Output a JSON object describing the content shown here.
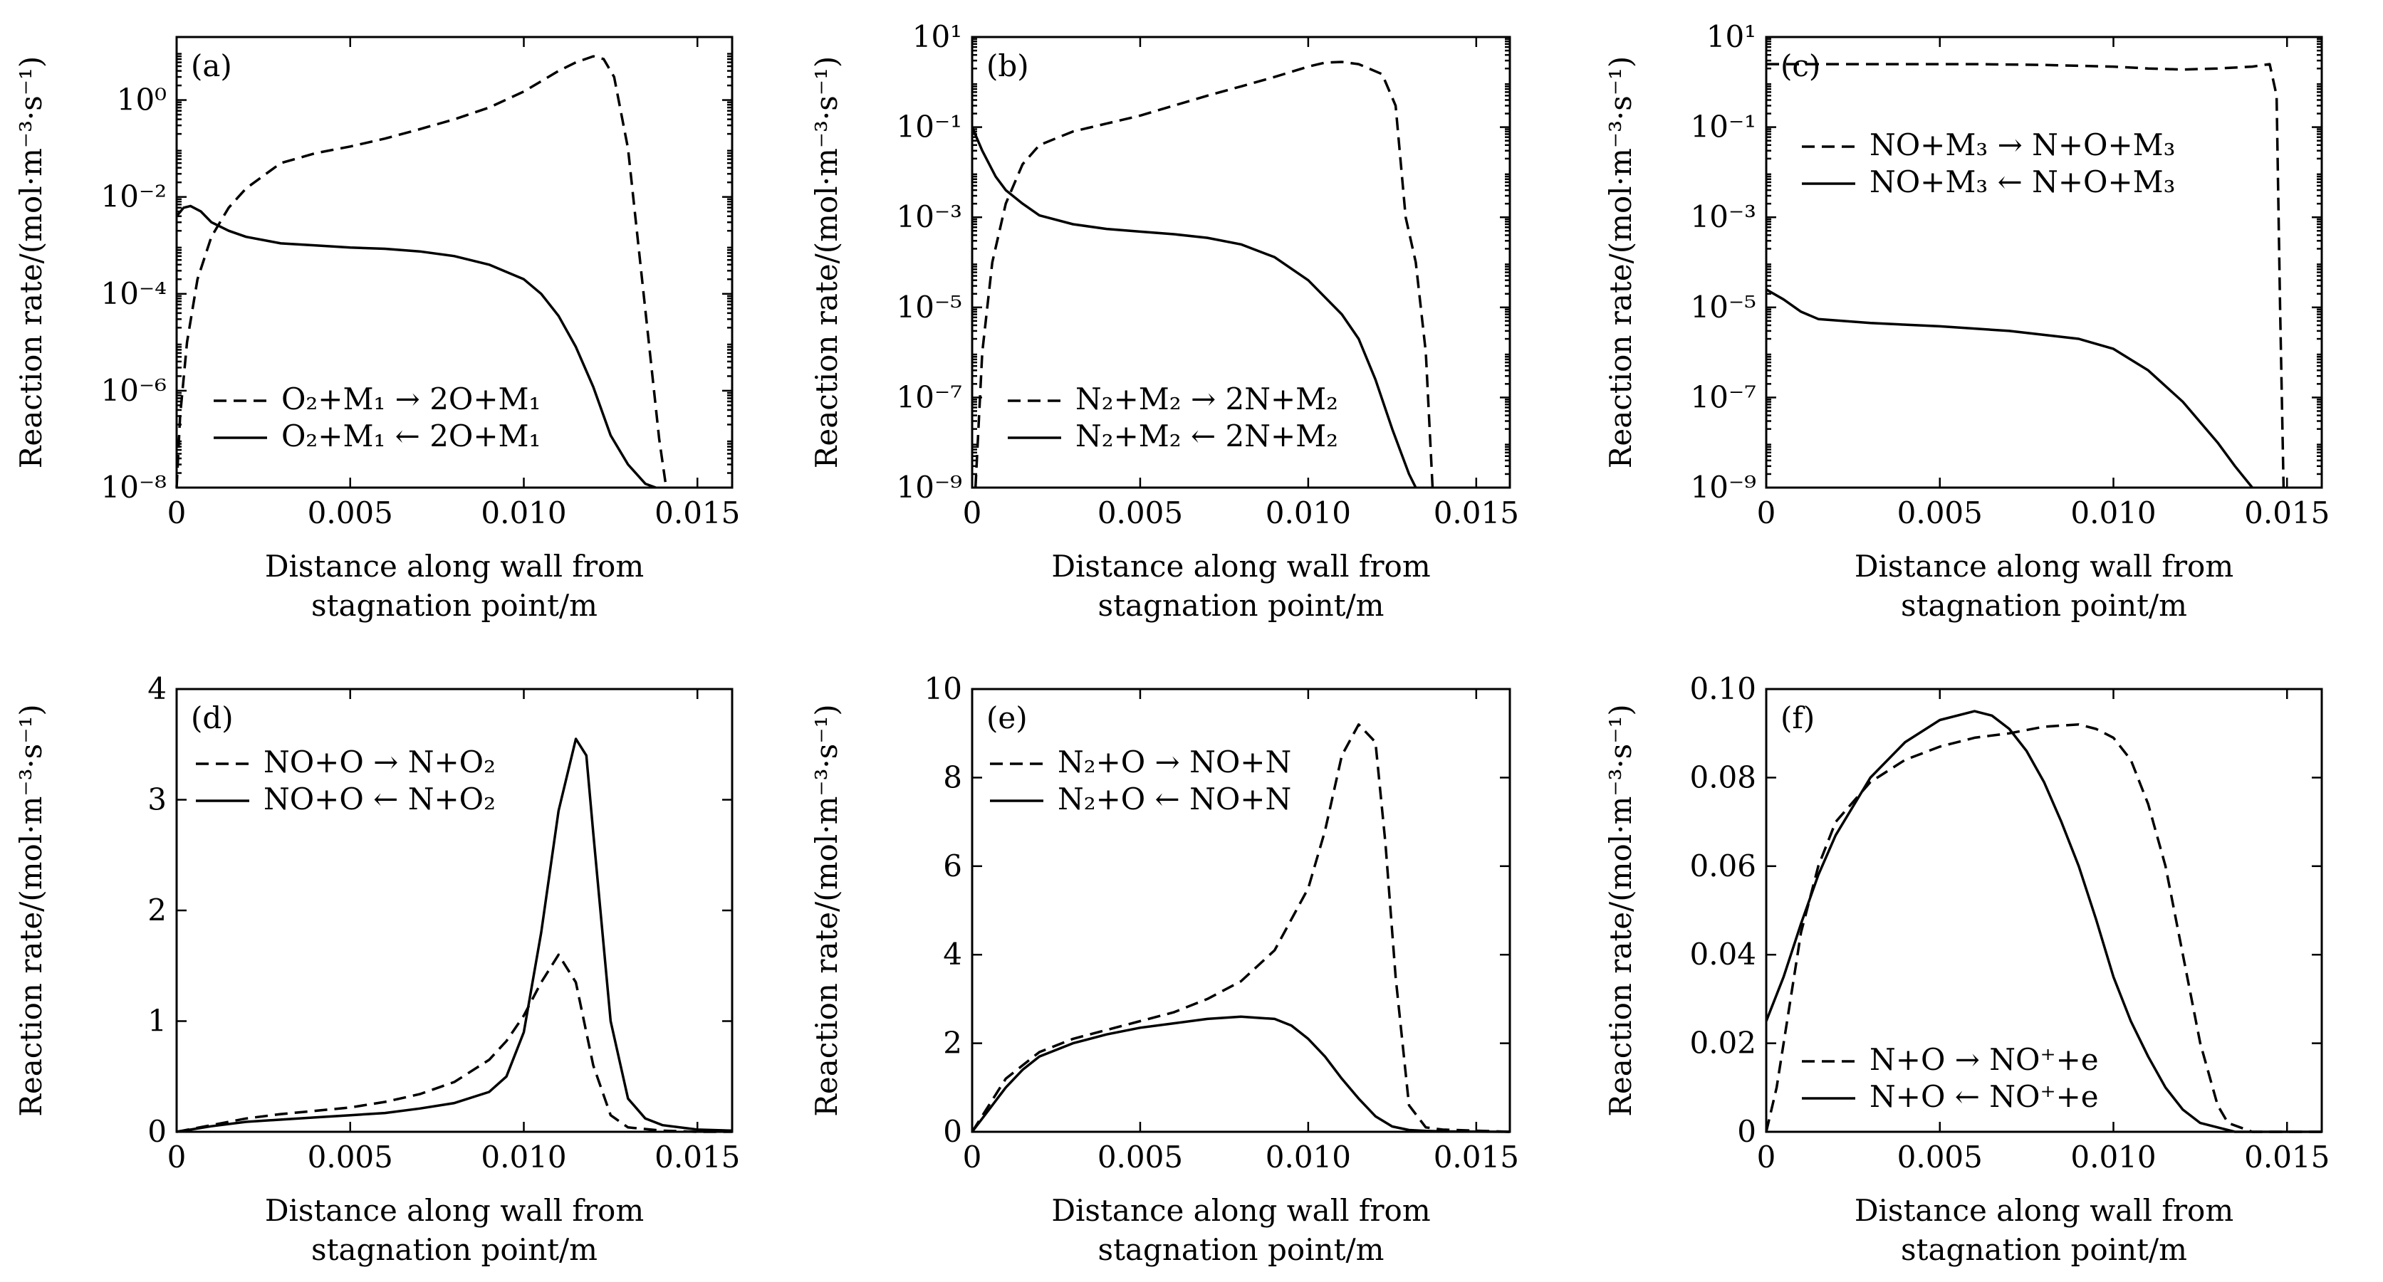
{
  "chart_data": [
    {
      "type": "line",
      "panel_label": "(a)",
      "xlabel": [
        "Distance along wall from",
        "stagnation point/m"
      ],
      "ylabel": "Reaction rate/(mol·m⁻³·s⁻¹)",
      "xlim": [
        0,
        0.016
      ],
      "ylim": [
        1e-08,
        20
      ],
      "yscale": "log",
      "xticks": [
        0,
        0.005,
        0.01,
        0.015
      ],
      "xtick_labels": [
        "0",
        "0.005",
        "0.010",
        "0.015"
      ],
      "yticks": [
        1e-08,
        1e-06,
        0.0001,
        0.01,
        1
      ],
      "ytick_labels": [
        "10⁻⁸",
        "10⁻⁶",
        "10⁻⁴",
        "10⁻²",
        "10⁰"
      ],
      "legend": "lower-left",
      "series": [
        {
          "name": "O₂+M₁ → 2O+M₁",
          "style": "dashed",
          "x": [
            0,
            0.0001,
            0.0003,
            0.0006,
            0.001,
            0.0015,
            0.002,
            0.003,
            0.004,
            0.005,
            0.006,
            0.007,
            0.008,
            0.009,
            0.01,
            0.011,
            0.0115,
            0.012,
            0.0123,
            0.0126,
            0.013,
            0.0133,
            0.0136,
            0.0139,
            0.0141
          ],
          "values": [
            1e-08,
            3e-07,
            1e-05,
            0.0002,
            0.0015,
            0.006,
            0.015,
            0.05,
            0.08,
            0.11,
            0.16,
            0.25,
            0.4,
            0.7,
            1.5,
            4,
            6,
            8,
            7,
            3,
            0.1,
            0.001,
            1e-05,
            1e-07,
            1e-08
          ]
        },
        {
          "name": "O₂+M₁ ← 2O+M₁",
          "style": "solid",
          "x": [
            0,
            0.0002,
            0.0004,
            0.0007,
            0.001,
            0.0015,
            0.002,
            0.003,
            0.004,
            0.005,
            0.006,
            0.007,
            0.008,
            0.009,
            0.01,
            0.0105,
            0.011,
            0.0115,
            0.012,
            0.0125,
            0.013,
            0.0135,
            0.0138
          ],
          "values": [
            0.004,
            0.006,
            0.0065,
            0.005,
            0.003,
            0.002,
            0.0015,
            0.0011,
            0.001,
            0.0009,
            0.00085,
            0.00075,
            0.0006,
            0.0004,
            0.0002,
            0.0001,
            3.5e-05,
            8e-06,
            1.2e-06,
            1.2e-07,
            3e-08,
            1.2e-08,
            1e-08
          ]
        }
      ]
    },
    {
      "type": "line",
      "panel_label": "(b)",
      "xlabel": [
        "Distance along wall from",
        "stagnation point/m"
      ],
      "ylabel": "Reaction rate/(mol·m⁻³·s⁻¹)",
      "xlim": [
        0,
        0.016
      ],
      "ylim": [
        1e-09,
        10
      ],
      "yscale": "log",
      "xticks": [
        0,
        0.005,
        0.01,
        0.015
      ],
      "xtick_labels": [
        "0",
        "0.005",
        "0.010",
        "0.015"
      ],
      "yticks": [
        1e-09,
        1e-07,
        1e-05,
        0.001,
        0.1,
        10
      ],
      "ytick_labels": [
        "10⁻⁹",
        "10⁻⁷",
        "10⁻⁵",
        "10⁻³",
        "10⁻¹",
        "10¹"
      ],
      "legend": "lower-left",
      "series": [
        {
          "name": "N₂+M₂ → 2N+M₂",
          "style": "dashed",
          "x": [
            0.0001,
            0.0003,
            0.0006,
            0.001,
            0.0015,
            0.002,
            0.003,
            0.004,
            0.005,
            0.006,
            0.007,
            0.008,
            0.009,
            0.01,
            0.0105,
            0.011,
            0.0115,
            0.0122,
            0.0126,
            0.0129,
            0.0132,
            0.0135,
            0.0137
          ],
          "values": [
            1e-09,
            1e-06,
            0.0001,
            0.002,
            0.015,
            0.04,
            0.08,
            0.12,
            0.18,
            0.3,
            0.5,
            0.8,
            1.3,
            2.2,
            2.7,
            2.8,
            2.5,
            1.5,
            0.3,
            0.001,
            0.0001,
            1e-06,
            1e-09
          ]
        },
        {
          "name": "N₂+M₂ ← 2N+M₂",
          "style": "solid",
          "x": [
            0,
            0.0003,
            0.0007,
            0.001,
            0.0015,
            0.002,
            0.003,
            0.004,
            0.005,
            0.006,
            0.007,
            0.008,
            0.009,
            0.01,
            0.011,
            0.0115,
            0.012,
            0.0125,
            0.013,
            0.0132
          ],
          "values": [
            0.1,
            0.03,
            0.008,
            0.004,
            0.002,
            0.0011,
            0.0007,
            0.00055,
            0.00048,
            0.00042,
            0.00035,
            0.00025,
            0.00013,
            4e-05,
            7e-06,
            2e-06,
            2.5e-07,
            2e-08,
            2e-09,
            1e-09
          ]
        }
      ]
    },
    {
      "type": "line",
      "panel_label": "(c)",
      "xlabel": [
        "Distance along wall from",
        "stagnation point/m"
      ],
      "ylabel": "Reaction rate/(mol·m⁻³·s⁻¹)",
      "xlim": [
        0,
        0.016
      ],
      "ylim": [
        1e-09,
        10
      ],
      "yscale": "log",
      "xticks": [
        0,
        0.005,
        0.01,
        0.015
      ],
      "xtick_labels": [
        "0",
        "0.005",
        "0.010",
        "0.015"
      ],
      "yticks": [
        1e-09,
        1e-07,
        1e-05,
        0.001,
        0.1,
        10
      ],
      "ytick_labels": [
        "10⁻⁹",
        "10⁻⁷",
        "10⁻⁵",
        "10⁻³",
        "10⁻¹",
        "10¹"
      ],
      "legend": "upper-left",
      "series": [
        {
          "name": "NO+M₃ → N+O+M₃",
          "style": "dashed",
          "x": [
            0,
            0.002,
            0.004,
            0.006,
            0.008,
            0.01,
            0.011,
            0.012,
            0.013,
            0.014,
            0.0145,
            0.0147,
            0.0148,
            0.0149
          ],
          "values": [
            2.5,
            2.5,
            2.5,
            2.5,
            2.4,
            2.2,
            2.0,
            1.9,
            2.0,
            2.2,
            2.5,
            0.5,
            1e-05,
            1e-09
          ]
        },
        {
          "name": "NO+M₃ ← N+O+M₃",
          "style": "solid",
          "x": [
            0,
            0.0005,
            0.001,
            0.0015,
            0.003,
            0.005,
            0.007,
            0.009,
            0.01,
            0.011,
            0.012,
            0.013,
            0.0135,
            0.014
          ],
          "values": [
            2.5e-05,
            1.5e-05,
            8e-06,
            5.5e-06,
            4.5e-06,
            3.8e-06,
            3e-06,
            2e-06,
            1.2e-06,
            4e-07,
            8e-08,
            1e-08,
            3e-09,
            1e-09
          ]
        }
      ]
    },
    {
      "type": "line",
      "panel_label": "(d)",
      "xlabel": [
        "Distance along wall from",
        "stagnation point/m"
      ],
      "ylabel": "Reaction rate/(mol·m⁻³·s⁻¹)",
      "xlim": [
        0,
        0.016
      ],
      "ylim": [
        0,
        4
      ],
      "yscale": "linear",
      "xticks": [
        0,
        0.005,
        0.01,
        0.015
      ],
      "xtick_labels": [
        "0",
        "0.005",
        "0.010",
        "0.015"
      ],
      "yticks": [
        0,
        1,
        2,
        3,
        4
      ],
      "ytick_labels": [
        "0",
        "1",
        "2",
        "3",
        "4"
      ],
      "legend": "upper-left",
      "series": [
        {
          "name": "NO+O → N+O₂",
          "style": "dashed",
          "x": [
            0,
            0.001,
            0.002,
            0.003,
            0.004,
            0.005,
            0.006,
            0.007,
            0.008,
            0.009,
            0.0095,
            0.01,
            0.0105,
            0.011,
            0.0115,
            0.012,
            0.0125,
            0.013,
            0.014,
            0.015,
            0.016
          ],
          "values": [
            0,
            0.06,
            0.12,
            0.16,
            0.19,
            0.22,
            0.27,
            0.34,
            0.45,
            0.65,
            0.82,
            1.05,
            1.35,
            1.6,
            1.35,
            0.6,
            0.15,
            0.04,
            0.01,
            0,
            0
          ]
        },
        {
          "name": "NO+O ← N+O₂",
          "style": "solid",
          "x": [
            0,
            0.001,
            0.002,
            0.003,
            0.004,
            0.005,
            0.006,
            0.007,
            0.008,
            0.009,
            0.0095,
            0.01,
            0.0105,
            0.011,
            0.0115,
            0.0118,
            0.012,
            0.0125,
            0.013,
            0.0135,
            0.014,
            0.015,
            0.016
          ],
          "values": [
            0,
            0.05,
            0.09,
            0.11,
            0.13,
            0.15,
            0.17,
            0.21,
            0.26,
            0.36,
            0.5,
            0.9,
            1.8,
            2.9,
            3.55,
            3.4,
            2.7,
            1.0,
            0.3,
            0.12,
            0.06,
            0.02,
            0.01
          ]
        }
      ]
    },
    {
      "type": "line",
      "panel_label": "(e)",
      "xlabel": [
        "Distance along wall from",
        "stagnation point/m"
      ],
      "ylabel": "Reaction rate/(mol·m⁻³·s⁻¹)",
      "xlim": [
        0,
        0.016
      ],
      "ylim": [
        0,
        10
      ],
      "yscale": "linear",
      "xticks": [
        0,
        0.005,
        0.01,
        0.015
      ],
      "xtick_labels": [
        "0",
        "0.005",
        "0.010",
        "0.015"
      ],
      "yticks": [
        0,
        2,
        4,
        6,
        8,
        10
      ],
      "ytick_labels": [
        "0",
        "2",
        "4",
        "6",
        "8",
        "10"
      ],
      "legend": "upper-left",
      "series": [
        {
          "name": "N₂+O → NO+N",
          "style": "dashed",
          "x": [
            0,
            0.001,
            0.002,
            0.003,
            0.004,
            0.005,
            0.006,
            0.007,
            0.008,
            0.009,
            0.01,
            0.0105,
            0.011,
            0.0115,
            0.012,
            0.0123,
            0.0126,
            0.013,
            0.0135,
            0.014,
            0.016
          ],
          "values": [
            0,
            1.2,
            1.8,
            2.1,
            2.3,
            2.5,
            2.7,
            3.0,
            3.4,
            4.1,
            5.5,
            6.8,
            8.5,
            9.2,
            8.8,
            6.5,
            3.5,
            0.6,
            0.1,
            0.05,
            0
          ]
        },
        {
          "name": "N₂+O ← NO+N",
          "style": "solid",
          "x": [
            0,
            0.0005,
            0.001,
            0.0015,
            0.002,
            0.003,
            0.004,
            0.005,
            0.006,
            0.007,
            0.008,
            0.009,
            0.0095,
            0.01,
            0.0105,
            0.011,
            0.0115,
            0.012,
            0.0125,
            0.013,
            0.0135,
            0.014,
            0.016
          ],
          "values": [
            0,
            0.5,
            1.0,
            1.4,
            1.7,
            2.0,
            2.2,
            2.35,
            2.45,
            2.55,
            2.6,
            2.55,
            2.4,
            2.1,
            1.7,
            1.2,
            0.75,
            0.35,
            0.12,
            0.04,
            0.02,
            0.01,
            0
          ]
        }
      ]
    },
    {
      "type": "line",
      "panel_label": "(f)",
      "xlabel": [
        "Distance along wall from",
        "stagnation point/m"
      ],
      "ylabel": "Reaction rate/(mol·m⁻³·s⁻¹)",
      "xlim": [
        0,
        0.016
      ],
      "ylim": [
        0,
        0.1
      ],
      "yscale": "linear",
      "xticks": [
        0,
        0.005,
        0.01,
        0.015
      ],
      "xtick_labels": [
        "0",
        "0.005",
        "0.010",
        "0.015"
      ],
      "yticks": [
        0,
        0.02,
        0.04,
        0.06,
        0.08,
        0.1
      ],
      "ytick_labels": [
        "0",
        "0.02",
        "0.04",
        "0.06",
        "0.08",
        "0.10"
      ],
      "legend": "lower-left",
      "series": [
        {
          "name": "N+O → NO⁺+e",
          "style": "dashed",
          "x": [
            0,
            0.0003,
            0.0006,
            0.001,
            0.0015,
            0.002,
            0.003,
            0.004,
            0.005,
            0.006,
            0.007,
            0.008,
            0.009,
            0.0095,
            0.01,
            0.0105,
            0.011,
            0.0115,
            0.012,
            0.0125,
            0.013,
            0.0133,
            0.014,
            0.016
          ],
          "values": [
            0,
            0.01,
            0.025,
            0.045,
            0.06,
            0.07,
            0.079,
            0.084,
            0.087,
            0.089,
            0.09,
            0.0915,
            0.092,
            0.091,
            0.089,
            0.084,
            0.074,
            0.06,
            0.04,
            0.02,
            0.006,
            0.002,
            0,
            0
          ]
        },
        {
          "name": "N+O ← NO⁺+e",
          "style": "solid",
          "x": [
            0,
            0.0005,
            0.001,
            0.0015,
            0.002,
            0.003,
            0.004,
            0.005,
            0.006,
            0.0065,
            0.007,
            0.0075,
            0.008,
            0.0085,
            0.009,
            0.0095,
            0.01,
            0.0105,
            0.011,
            0.0115,
            0.012,
            0.0125,
            0.013,
            0.0135,
            0.014,
            0.016
          ],
          "values": [
            0.025,
            0.035,
            0.047,
            0.058,
            0.067,
            0.08,
            0.088,
            0.093,
            0.095,
            0.094,
            0.091,
            0.086,
            0.079,
            0.07,
            0.06,
            0.048,
            0.035,
            0.025,
            0.017,
            0.01,
            0.005,
            0.002,
            0.001,
            0,
            0,
            0
          ]
        }
      ]
    }
  ]
}
